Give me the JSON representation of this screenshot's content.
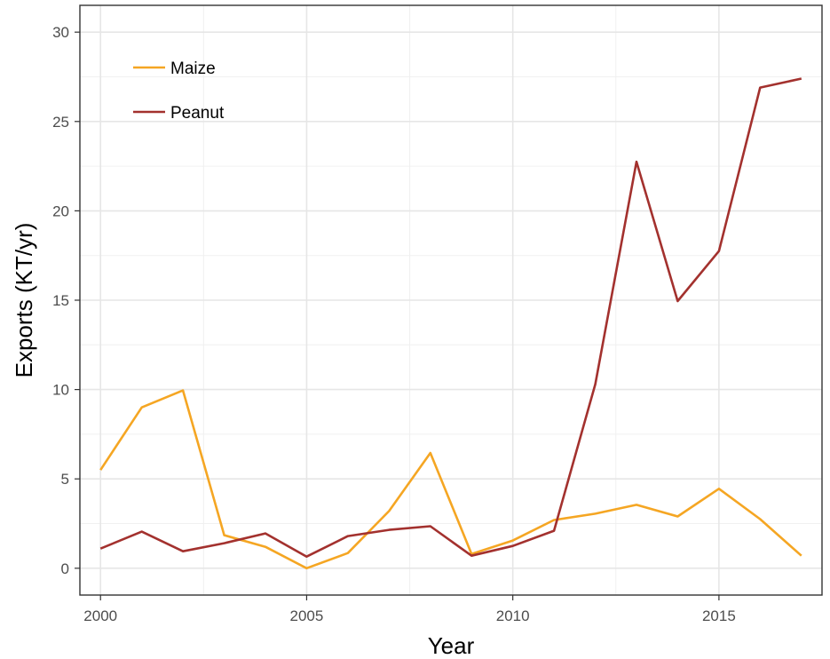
{
  "chart_data": {
    "type": "line",
    "xlabel": "Year",
    "ylabel": "Exports (KT/yr)",
    "xlim": [
      1999.5,
      2017.5
    ],
    "ylim": [
      -1.5,
      31.5
    ],
    "x_ticks": [
      2000,
      2005,
      2010,
      2015
    ],
    "y_ticks": [
      0,
      5,
      10,
      15,
      20,
      25,
      30
    ],
    "grid": true,
    "legend_position": "top-left",
    "x": [
      2000,
      2001,
      2002,
      2003,
      2004,
      2005,
      2006,
      2007,
      2008,
      2009,
      2010,
      2011,
      2012,
      2013,
      2014,
      2015,
      2016,
      2017
    ],
    "series": [
      {
        "name": "Maize",
        "color": "#f5a623",
        "values": [
          5.5,
          9.0,
          9.95,
          1.85,
          1.2,
          0.0,
          0.85,
          3.2,
          6.45,
          0.8,
          1.55,
          2.7,
          3.05,
          3.55,
          2.9,
          4.45,
          2.75,
          0.7
        ]
      },
      {
        "name": "Peanut",
        "color": "#a3312e",
        "values": [
          1.1,
          2.05,
          0.95,
          1.4,
          1.95,
          0.65,
          1.8,
          2.15,
          2.35,
          0.7,
          1.25,
          2.1,
          10.3,
          22.75,
          14.95,
          17.75,
          26.9,
          27.4
        ]
      }
    ]
  }
}
